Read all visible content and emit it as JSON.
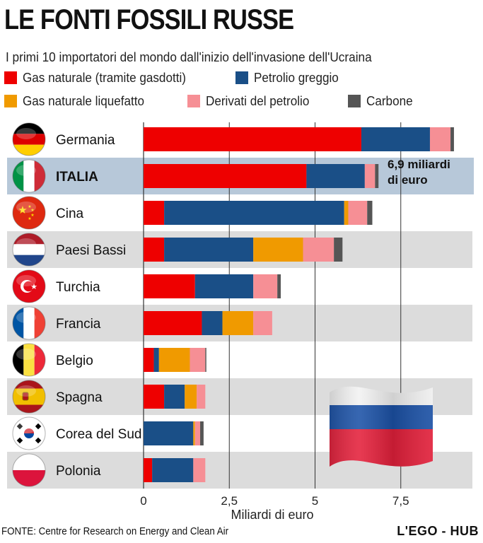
{
  "header": {
    "title": "LE FONTI FOSSILI RUSSE",
    "subtitle": "I primi 10 importatori del mondo dall'inizio dell'invasione dell'Ucraina"
  },
  "legend": [
    {
      "label": "Gas naturale (tramite gasdotti)",
      "color": "#ee0000"
    },
    {
      "label": "Petrolio greggio",
      "color": "#1a4f87"
    },
    {
      "label": "Gas naturale liquefatto",
      "color": "#f09a00"
    },
    {
      "label": "Derivati del petrolio",
      "color": "#f68f95"
    },
    {
      "label": "Carbone",
      "color": "#555555"
    }
  ],
  "chart_data": {
    "type": "bar",
    "orientation": "horizontal",
    "stacked": true,
    "categories": [
      "Germania",
      "ITALIA",
      "Cina",
      "Paesi Bassi",
      "Turchia",
      "Francia",
      "Belgio",
      "Spagna",
      "Corea del Sud",
      "Polonia"
    ],
    "series": [
      {
        "name": "Gas naturale (tramite gasdotti)",
        "values": [
          6.35,
          4.75,
          0.6,
          0.6,
          1.5,
          1.7,
          0.3,
          0.6,
          0.0,
          0.25
        ]
      },
      {
        "name": "Petrolio greggio",
        "values": [
          2.0,
          1.7,
          5.25,
          2.6,
          1.7,
          0.6,
          0.15,
          0.6,
          1.45,
          1.2
        ]
      },
      {
        "name": "Gas naturale liquefatto",
        "values": [
          0.0,
          0.0,
          0.12,
          1.45,
          0.0,
          0.9,
          0.9,
          0.35,
          0.05,
          0.0
        ]
      },
      {
        "name": "Derivati del petrolio",
        "values": [
          0.6,
          0.3,
          0.55,
          0.9,
          0.7,
          0.55,
          0.45,
          0.25,
          0.15,
          0.35
        ]
      },
      {
        "name": "Carbone",
        "values": [
          0.1,
          0.1,
          0.15,
          0.25,
          0.1,
          0.0,
          0.03,
          0.0,
          0.1,
          0.0
        ]
      }
    ],
    "highlight": "ITALIA",
    "annotation": "6,9 miliardi di euro",
    "xlabel": "Miliardi di euro",
    "xticks": [
      0,
      2.5,
      5,
      7.5
    ],
    "xtick_labels": [
      "0",
      "2,5",
      "5",
      "7,5"
    ],
    "xlim": [
      0,
      9.6
    ],
    "grid": true
  },
  "flag_icons": [
    "germany-flag-icon",
    "italy-flag-icon",
    "china-flag-icon",
    "netherlands-flag-icon",
    "turkey-flag-icon",
    "france-flag-icon",
    "belgium-flag-icon",
    "spain-flag-icon",
    "south-korea-flag-icon",
    "poland-flag-icon"
  ],
  "decoration": {
    "russia_flag": "russia-flag-icon"
  },
  "footer": {
    "source": "FONTE: Centre for Research on Energy and Clean Air",
    "brand": "L'EGO - HUB"
  }
}
